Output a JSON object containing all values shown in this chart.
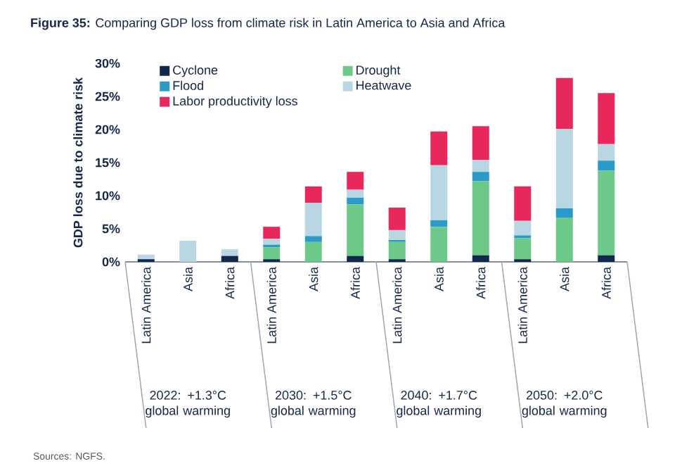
{
  "chart_data": {
    "type": "bar",
    "stacked": true,
    "title": "**Figure 35:** Comparing GDP loss from climate risk in Latin America to Asia and Africa",
    "ylabel": "GDP loss due to climate risk",
    "categories": [
      "Latin America",
      "Asia",
      "Africa",
      "Latin America",
      "Asia",
      "Africa",
      "Latin America",
      "Asia",
      "Africa",
      "Latin America",
      "Asia",
      "Africa"
    ],
    "series": [
      {
        "name": "Cyclone",
        "color": "#10284a",
        "values": [
          0.4,
          0,
          0.9,
          0.4,
          0,
          0.9,
          0.4,
          0,
          1.0,
          0.4,
          0,
          1.0
        ]
      },
      {
        "name": "Drought",
        "color": "#6cc98a",
        "values": [
          0,
          0,
          0,
          1.8,
          3.0,
          7.8,
          2.6,
          5.3,
          11.2,
          3.2,
          6.7,
          12.8
        ]
      },
      {
        "name": "Flood",
        "color": "#2a9bc9",
        "values": [
          0,
          0,
          0,
          0.4,
          0.9,
          1.0,
          0.3,
          1.0,
          1.4,
          0.4,
          1.4,
          1.5
        ]
      },
      {
        "name": "Heatwave",
        "color": "#b9d6e3",
        "values": [
          0.7,
          3.2,
          1.0,
          0.9,
          5.0,
          1.2,
          1.5,
          8.3,
          1.8,
          2.2,
          12.0,
          2.5
        ]
      },
      {
        "name": "Labor productivity loss",
        "color": "#e8275a",
        "values": [
          0,
          0,
          0,
          1.8,
          2.5,
          2.7,
          3.4,
          5.1,
          5.1,
          5.2,
          7.7,
          7.7
        ]
      }
    ],
    "ylim": [
      0,
      30
    ],
    "yticks": [
      {
        "value": 0,
        "label": "0%"
      },
      {
        "value": 5,
        "label": "5%"
      },
      {
        "value": 10,
        "label": "10%"
      },
      {
        "value": 15,
        "label": "15%"
      },
      {
        "value": 20,
        "label": "20%"
      },
      {
        "value": 25,
        "label": "25%"
      },
      {
        "value": 30,
        "label": "30%"
      }
    ],
    "legend": "top left",
    "annotations": [
      "2022: +1.3°C global warming",
      "2030: +1.5°C global warming",
      "2040: +1.7°C global warming",
      "2050: +2.0°C global warming",
      "Sources: NGFS."
    ]
  }
}
